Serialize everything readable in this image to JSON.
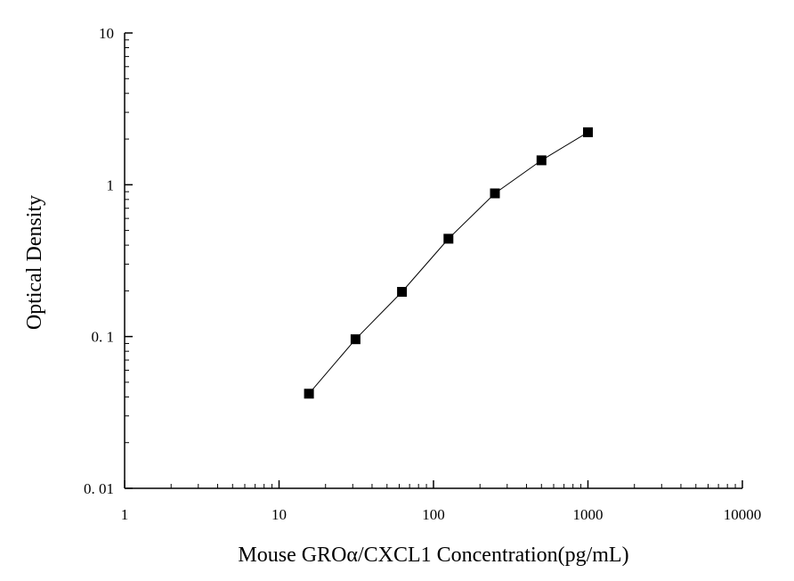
{
  "chart_data": {
    "type": "scatter",
    "title": "",
    "xlabel": "Mouse GROα/CXCL1 Concentration(pg/mL)",
    "ylabel": "Optical Density",
    "x_scale": "log",
    "y_scale": "log",
    "xlim": [
      1,
      10000
    ],
    "ylim": [
      0.01,
      10
    ],
    "grid": false,
    "x_ticks": [
      {
        "value": 1,
        "label": "1"
      },
      {
        "value": 10,
        "label": "10"
      },
      {
        "value": 100,
        "label": "100"
      },
      {
        "value": 1000,
        "label": "1000"
      },
      {
        "value": 10000,
        "label": "10000"
      }
    ],
    "y_ticks": [
      {
        "value": 0.01,
        "label": "0. 01"
      },
      {
        "value": 0.1,
        "label": "0. 1"
      },
      {
        "value": 1,
        "label": "1"
      },
      {
        "value": 10,
        "label": "10"
      }
    ],
    "series": [
      {
        "connected": true,
        "marker": "square",
        "color": "#000000",
        "x": [
          15.625,
          31.25,
          62.5,
          125,
          250,
          500,
          1000
        ],
        "y": [
          0.042,
          0.096,
          0.197,
          0.441,
          0.878,
          1.448,
          2.217
        ]
      }
    ]
  }
}
